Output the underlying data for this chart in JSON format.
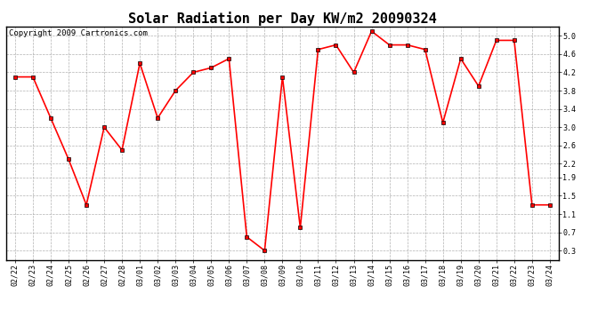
{
  "title": "Solar Radiation per Day KW/m2 20090324",
  "copyright": "Copyright 2009 Cartronics.com",
  "labels": [
    "02/22",
    "02/23",
    "02/24",
    "02/25",
    "02/26",
    "02/27",
    "02/28",
    "03/01",
    "03/02",
    "03/03",
    "03/04",
    "03/05",
    "03/06",
    "03/07",
    "03/08",
    "03/09",
    "03/10",
    "03/11",
    "03/12",
    "03/13",
    "03/14",
    "03/15",
    "03/16",
    "03/17",
    "03/18",
    "03/19",
    "03/20",
    "03/21",
    "03/22",
    "03/23",
    "03/24"
  ],
  "values": [
    4.1,
    4.1,
    3.2,
    2.3,
    1.3,
    3.0,
    2.5,
    4.4,
    3.2,
    3.8,
    4.2,
    4.3,
    4.5,
    0.6,
    0.3,
    4.1,
    0.8,
    4.7,
    4.8,
    4.2,
    5.1,
    4.8,
    4.8,
    4.7,
    3.1,
    4.5,
    3.9,
    4.9,
    4.9,
    1.3,
    1.3
  ],
  "line_color": "red",
  "marker": "s",
  "marker_size": 2.5,
  "background_color": "#ffffff",
  "plot_bg_color": "#ffffff",
  "grid_color": "#aaaaaa",
  "yticks": [
    0.3,
    0.7,
    1.1,
    1.5,
    1.9,
    2.2,
    2.6,
    3.0,
    3.4,
    3.8,
    4.2,
    4.6,
    5.0
  ],
  "ylim": [
    0.1,
    5.2
  ],
  "title_fontsize": 11,
  "tick_fontsize": 6,
  "copyright_fontsize": 6.5
}
